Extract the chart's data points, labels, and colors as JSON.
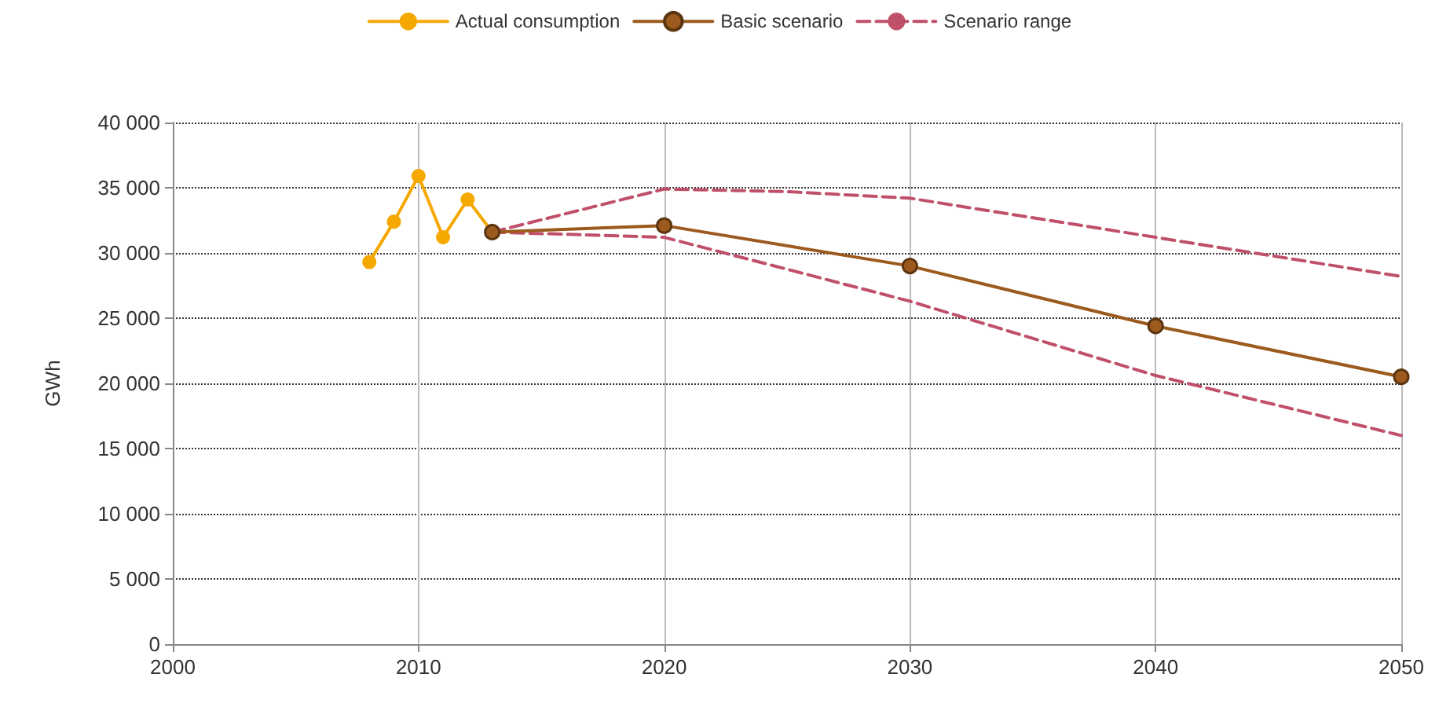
{
  "chart_data": {
    "type": "line",
    "ylabel": "GWh",
    "xlim": [
      2000,
      2050
    ],
    "xticks": [
      2000,
      2010,
      2020,
      2030,
      2040,
      2050
    ],
    "ylim": [
      0,
      40000
    ],
    "yticks": [
      {
        "value": 0,
        "label": "0"
      },
      {
        "value": 5000,
        "label": "5 000"
      },
      {
        "value": 10000,
        "label": "10 000"
      },
      {
        "value": 15000,
        "label": "15 000"
      },
      {
        "value": 20000,
        "label": "20 000"
      },
      {
        "value": 25000,
        "label": "25 000"
      },
      {
        "value": 30000,
        "label": "30 000"
      },
      {
        "value": 35000,
        "label": "35 000"
      },
      {
        "value": 40000,
        "label": "40 000"
      }
    ],
    "grid": true,
    "legend": "top",
    "marker": "circle",
    "series": [
      {
        "name": "Actual consumption",
        "color": "#f5a800",
        "x": [
          2008,
          2009,
          2010,
          2011,
          2012,
          2013
        ],
        "values": [
          29300,
          32400,
          35900,
          31200,
          34100,
          31600
        ]
      },
      {
        "name": "Basic scenario",
        "color": "#9c5a1e",
        "x": [
          2013,
          2020,
          2030,
          2040,
          2050
        ],
        "values": [
          31600,
          32100,
          29000,
          24400,
          20500
        ]
      },
      {
        "name": "Scenario range",
        "color": "#c0506a",
        "line_style": "dashed",
        "marker": "none",
        "x": [
          2013,
          2020,
          2025,
          2030,
          2040,
          2050
        ],
        "values": [
          31600,
          34900,
          34700,
          34200,
          31200,
          28200
        ]
      },
      {
        "color": "#c0506a",
        "line_style": "dashed",
        "marker": "none",
        "x": [
          2013,
          2020,
          2030,
          2040,
          2050
        ],
        "values": [
          31600,
          31200,
          26300,
          20600,
          16000
        ]
      }
    ]
  }
}
